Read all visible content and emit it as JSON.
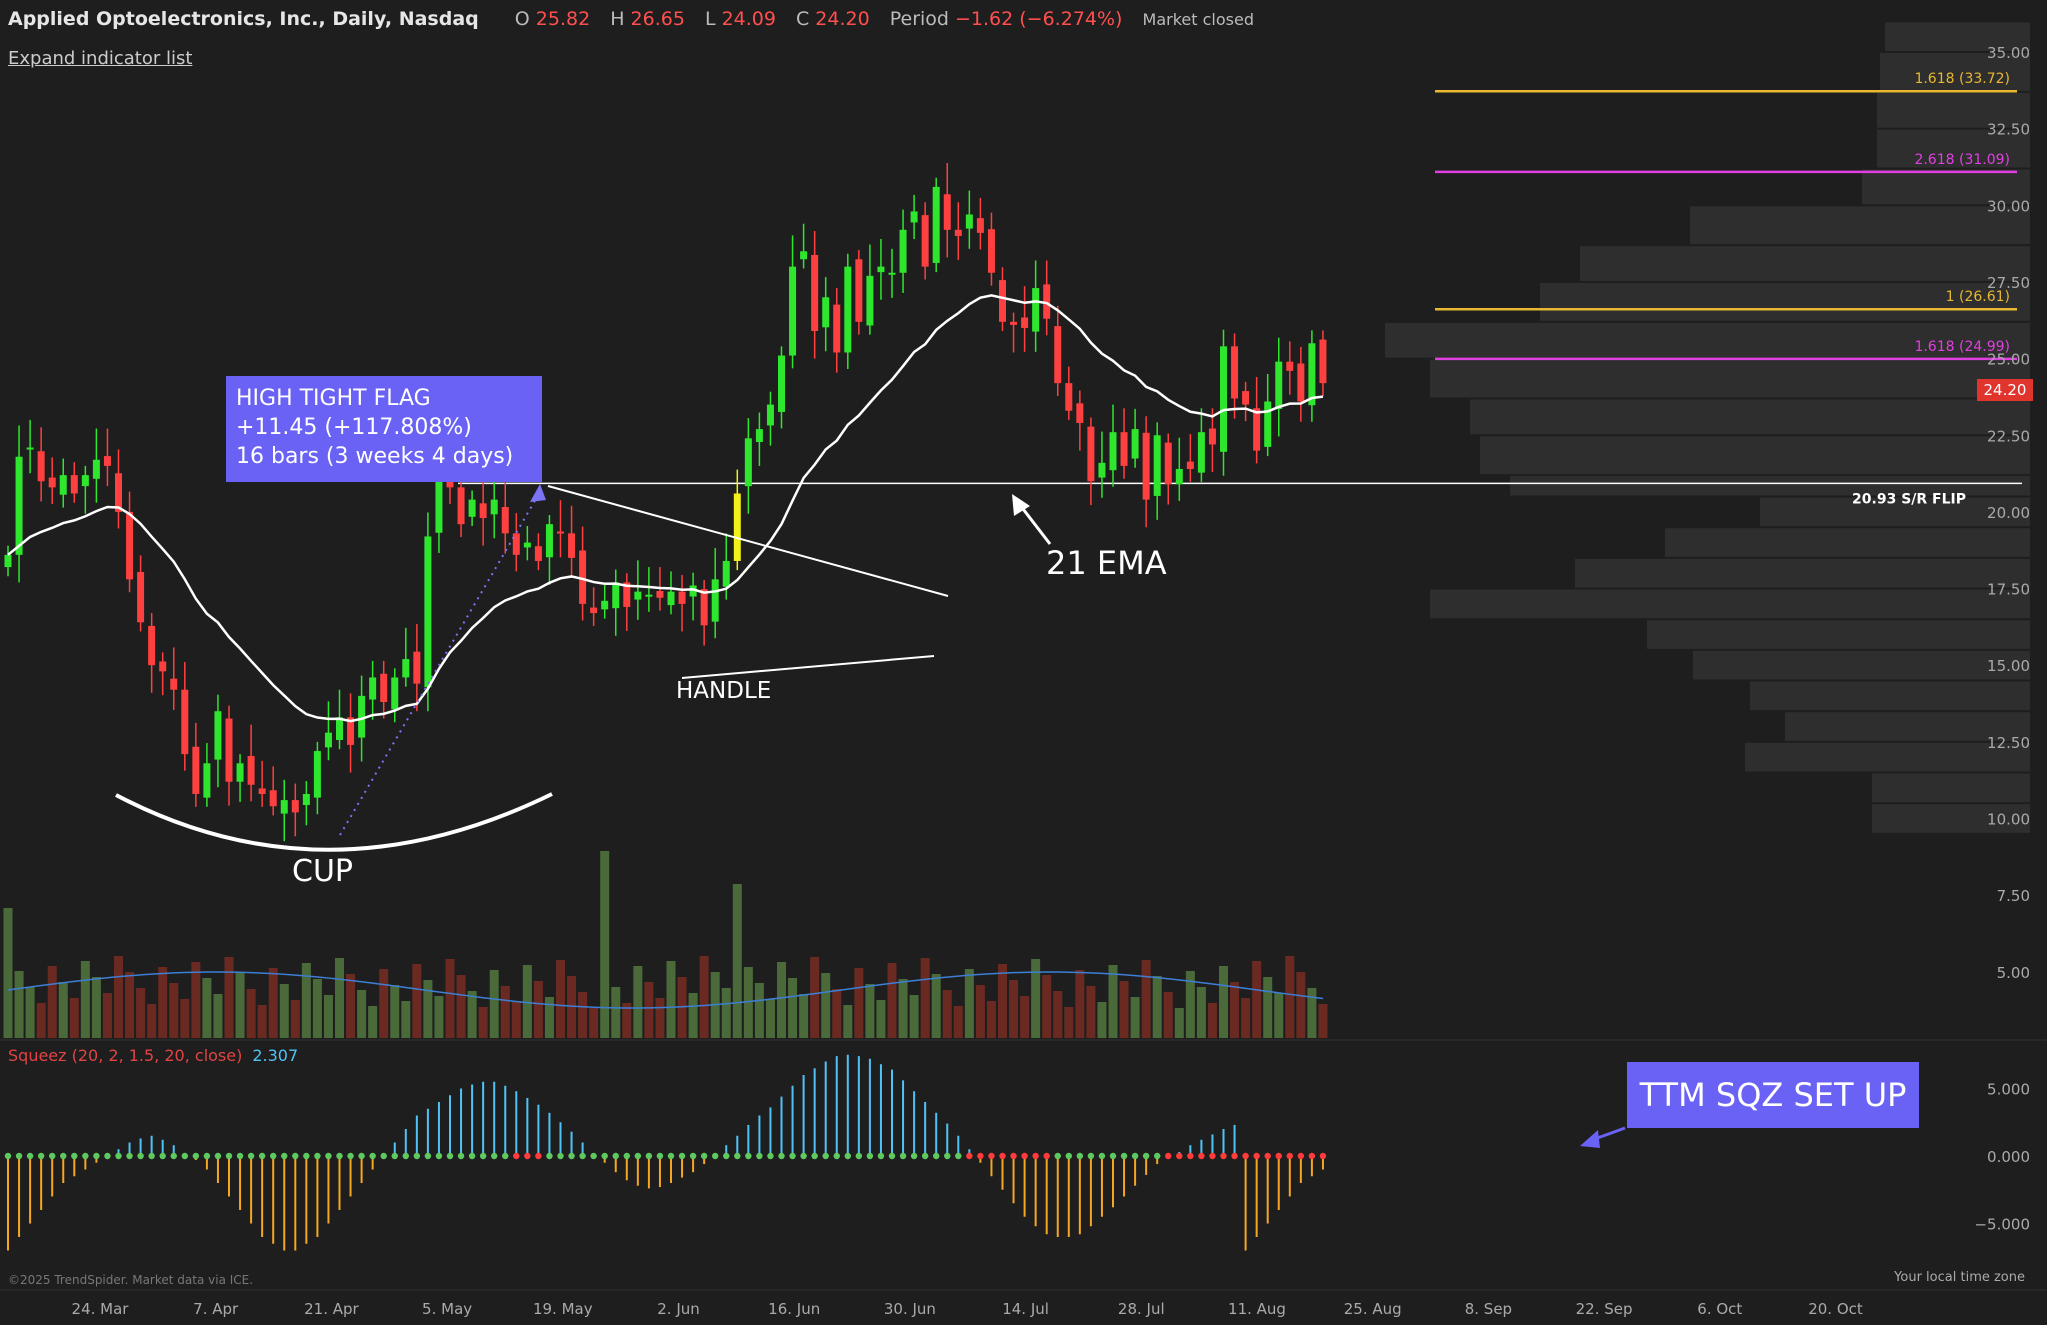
{
  "header": {
    "symbol": "Applied Optoelectronics, Inc., Daily, Nasdaq",
    "open_label": "O",
    "open": "25.82",
    "high_label": "H",
    "high": "26.65",
    "low_label": "L",
    "low": "24.09",
    "close_label": "C",
    "close": "24.20",
    "period_label": "Period",
    "period": "−1.62 (−6.274%)",
    "market_status": "Market closed"
  },
  "expand_label": "Expand indicator list",
  "annotations": {
    "htf_line1": "HIGH TIGHT FLAG",
    "htf_line2": "+11.45 (+117.808%)",
    "htf_line3": "16 bars (3 weeks 4 days)",
    "cup": "CUP",
    "handle": "HANDLE",
    "ema": "21 EMA",
    "ttm": "TTM SQZ SET UP",
    "sr_flip": "20.93 S/R FLIP"
  },
  "squeeze": {
    "label": "Squeez (20, 2, 1.5, 20, close)",
    "value": "2.307"
  },
  "footer": {
    "copyright": "©2025 TrendSpider. Market data via ICE.",
    "timezone": "Your local time zone"
  },
  "last_price": "24.20",
  "colors": {
    "up": "#2ee62e",
    "down": "#ff4040",
    "yellow": "#f2f21a",
    "magenta": "#e040e0",
    "gold": "#e8b830",
    "ema": "#ffffff",
    "sqz_pos": "#4fc3f7",
    "sqz_neg": "#f5a623"
  },
  "chart_data": {
    "type": "candlestick",
    "y_axis": {
      "ticks": [
        "35.00",
        "32.50",
        "30.00",
        "27.50",
        "25.00",
        "22.50",
        "20.00",
        "17.50",
        "15.00",
        "12.50",
        "10.00",
        "7.50",
        "5.00"
      ],
      "range": [
        2.5,
        36
      ]
    },
    "sqz_axis": {
      "ticks": [
        "5.000",
        "0.000",
        "−5.000"
      ]
    },
    "x_axis": {
      "ticks": [
        "24. Mar",
        "7. Apr",
        "21. Apr",
        "5. May",
        "19. May",
        "2. Jun",
        "16. Jun",
        "30. Jun",
        "14. Jul",
        "28. Jul",
        "11. Aug",
        "25. Aug",
        "8. Sep",
        "22. Sep",
        "6. Oct",
        "20. Oct"
      ]
    },
    "levels": [
      {
        "label": "1.618 (33.72)",
        "value": 33.72,
        "color": "gold"
      },
      {
        "label": "2.618 (31.09)",
        "value": 31.09,
        "color": "magenta"
      },
      {
        "label": "1 (26.61)",
        "value": 26.61,
        "color": "gold"
      },
      {
        "label": "1.618 (24.99)",
        "value": 24.99,
        "color": "magenta"
      }
    ],
    "sr_flip": 20.93,
    "closes": [
      18.6,
      21.8,
      22.1,
      21.0,
      20.8,
      21.2,
      20.6,
      21.2,
      21.7,
      21.5,
      20.0,
      17.8,
      16.4,
      15.0,
      14.8,
      14.2,
      12.1,
      10.8,
      11.8,
      13.5,
      11.2,
      11.8,
      11.1,
      10.8,
      10.4,
      10.6,
      10.2,
      10.8,
      12.2,
      12.8,
      13.3,
      12.4,
      14.0,
      14.6,
      13.8,
      14.6,
      15.2,
      14.4,
      19.2,
      21.3,
      20.8,
      19.6,
      20.4,
      19.8,
      20.4,
      19.3,
      18.6,
      19.0,
      18.4,
      19.6,
      19.3,
      18.5,
      17.0,
      16.7,
      17.1,
      17.7,
      16.9,
      17.4,
      17.3,
      17.2,
      17.4,
      17.0,
      17.6,
      16.3,
      17.8,
      18.4,
      20.6,
      22.4,
      22.7,
      23.5,
      25.1,
      28.0,
      28.5,
      25.9,
      27.0,
      25.2,
      28.0,
      26.2,
      27.7,
      28.0,
      27.8,
      29.2,
      29.8,
      28.0,
      30.6,
      29.2,
      29.0,
      29.7,
      29.1,
      27.8,
      26.2,
      26.1,
      26.0,
      27.3,
      26.3,
      24.2,
      23.3,
      22.9,
      21.0,
      21.6,
      22.6,
      21.5,
      22.7,
      20.4,
      22.5,
      20.9,
      21.4,
      21.4,
      22.6,
      22.2,
      25.4,
      23.7,
      23.5,
      22.0,
      23.6,
      24.9,
      24.6,
      23.6,
      25.5,
      24.2
    ]
  }
}
